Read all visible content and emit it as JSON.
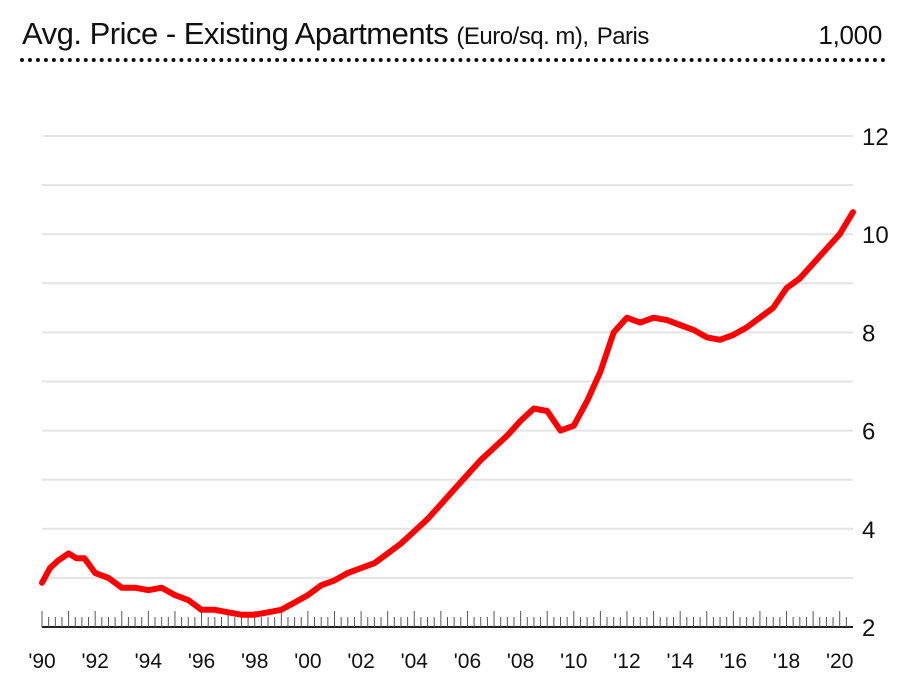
{
  "header": {
    "title_main": "Avg. Price - Existing Apartments",
    "title_units": "(Euro/sq. m),",
    "title_location": "Paris",
    "scale_note": "1,000"
  },
  "colors": {
    "line": "#ff0000",
    "grid": "#e3e3e3",
    "text": "#111111"
  },
  "chart_data": {
    "type": "line",
    "title": "Avg. Price - Existing Apartments (Euro/sq. m), Paris",
    "ylabel": "1,000",
    "xlim": [
      1990,
      2020.5
    ],
    "ylim": [
      2,
      12
    ],
    "y_ticks": [
      2,
      4,
      6,
      8,
      10,
      12
    ],
    "y_tick_labels": [
      "2",
      "4",
      "6",
      "8",
      "10",
      "12"
    ],
    "x_tick_labels": [
      "'90",
      "'92",
      "'94",
      "'96",
      "'98",
      "'00",
      "'02",
      "'04",
      "'06",
      "'08",
      "'10",
      "'12",
      "'14",
      "'16",
      "'18",
      "'20"
    ],
    "x_tick_values": [
      1990,
      1992,
      1994,
      1996,
      1998,
      2000,
      2002,
      2004,
      2006,
      2008,
      2010,
      2012,
      2014,
      2016,
      2018,
      2020
    ],
    "grid": true,
    "series": [
      {
        "values_x": [
          1990,
          1990.3,
          1990.6,
          1991,
          1991.3,
          1991.6,
          1992,
          1992.5,
          1993,
          1993.5,
          1994,
          1994.5,
          1995,
          1995.5,
          1996,
          1996.5,
          1997,
          1997.5,
          1998,
          1998.5,
          1999,
          1999.5,
          2000,
          2000.5,
          2001,
          2001.5,
          2002,
          2002.5,
          2003,
          2003.5,
          2004,
          2004.5,
          2005,
          2005.5,
          2006,
          2006.5,
          2007,
          2007.5,
          2008,
          2008.5,
          2009,
          2009.5,
          2010,
          2010.5,
          2011,
          2011.5,
          2012,
          2012.5,
          2013,
          2013.5,
          2014,
          2014.5,
          2015,
          2015.5,
          2016,
          2016.5,
          2017,
          2017.5,
          2018,
          2018.5,
          2019,
          2019.5,
          2020,
          2020.5
        ],
        "values_y": [
          2.9,
          3.2,
          3.35,
          3.5,
          3.4,
          3.4,
          3.1,
          3.0,
          2.8,
          2.8,
          2.75,
          2.8,
          2.65,
          2.55,
          2.35,
          2.35,
          2.3,
          2.25,
          2.25,
          2.3,
          2.35,
          2.5,
          2.65,
          2.85,
          2.95,
          3.1,
          3.2,
          3.3,
          3.5,
          3.7,
          3.95,
          4.2,
          4.5,
          4.8,
          5.1,
          5.4,
          5.65,
          5.9,
          6.2,
          6.45,
          6.4,
          6.0,
          6.1,
          6.6,
          7.2,
          8.0,
          8.3,
          8.2,
          8.3,
          8.25,
          8.15,
          8.05,
          7.9,
          7.85,
          7.95,
          8.1,
          8.3,
          8.5,
          8.9,
          9.1,
          9.4,
          9.7,
          10.0,
          10.45
        ]
      }
    ]
  }
}
